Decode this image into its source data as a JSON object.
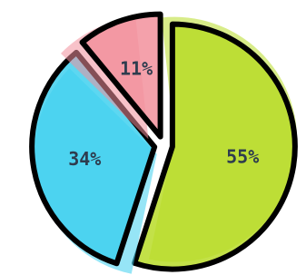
{
  "chart_data": {
    "type": "pie",
    "categories": [
      null,
      null,
      null
    ],
    "values": [
      55,
      34,
      11
    ],
    "value_labels": [
      "55%",
      "34%",
      "11%"
    ],
    "colors": [
      "#b8dc28",
      "#3fd0ef",
      "#f2909c"
    ]
  }
}
